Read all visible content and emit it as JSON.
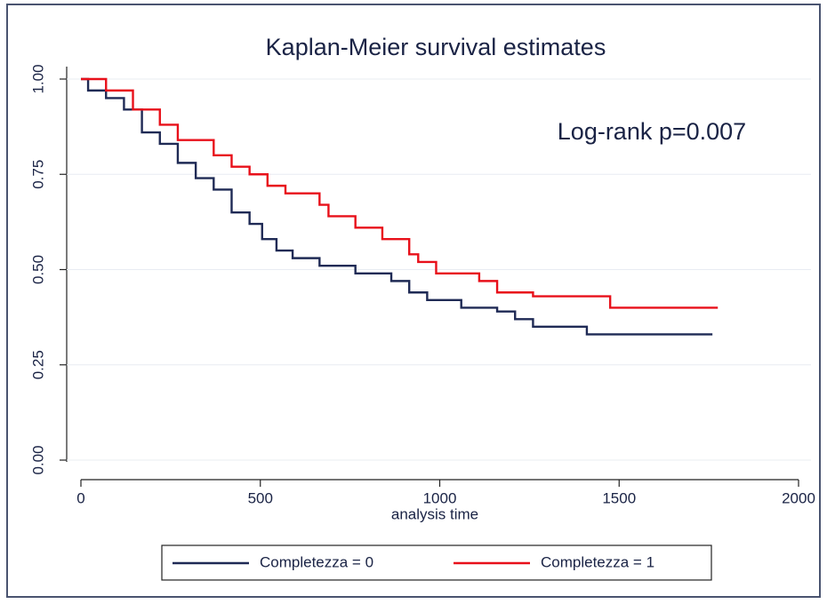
{
  "chart_data": {
    "type": "line",
    "drawstyle": "steps-post",
    "title": "Kaplan-Meier survival estimates",
    "annotation": "Log-rank p=0.007",
    "x_label": "analysis time",
    "xlim": [
      0,
      2000
    ],
    "xticks": [
      0,
      500,
      1000,
      1500,
      2000
    ],
    "ylim": [
      0,
      1
    ],
    "yticks": [
      {
        "value": 0,
        "label": "0.00"
      },
      {
        "value": 0.25,
        "label": "0.25"
      },
      {
        "value": 0.5,
        "label": "0.50"
      },
      {
        "value": 0.75,
        "label": "0.75"
      },
      {
        "value": 1,
        "label": "1.00"
      }
    ],
    "grid": true,
    "series": [
      {
        "name": "Completezza = 0",
        "color": "#1f2a55",
        "x": [
          0,
          20,
          70,
          120,
          170,
          220,
          270,
          320,
          370,
          420,
          470,
          505,
          545,
          590,
          665,
          765,
          865,
          915,
          965,
          1060,
          1160,
          1210,
          1260,
          1385,
          1410,
          1760
        ],
        "values": [
          1.0,
          0.97,
          0.95,
          0.92,
          0.86,
          0.83,
          0.78,
          0.74,
          0.71,
          0.65,
          0.62,
          0.58,
          0.55,
          0.53,
          0.51,
          0.49,
          0.47,
          0.44,
          0.42,
          0.4,
          0.39,
          0.37,
          0.35,
          0.35,
          0.33,
          0.33
        ]
      },
      {
        "name": "Completezza = 1",
        "color": "#e8101a",
        "x": [
          0,
          70,
          145,
          220,
          270,
          370,
          420,
          470,
          520,
          570,
          665,
          690,
          765,
          840,
          915,
          940,
          990,
          1110,
          1160,
          1260,
          1475,
          1775
        ],
        "values": [
          1.0,
          0.97,
          0.92,
          0.88,
          0.84,
          0.8,
          0.77,
          0.75,
          0.72,
          0.7,
          0.67,
          0.64,
          0.61,
          0.58,
          0.54,
          0.52,
          0.49,
          0.47,
          0.44,
          0.43,
          0.4,
          0.4
        ]
      }
    ]
  }
}
